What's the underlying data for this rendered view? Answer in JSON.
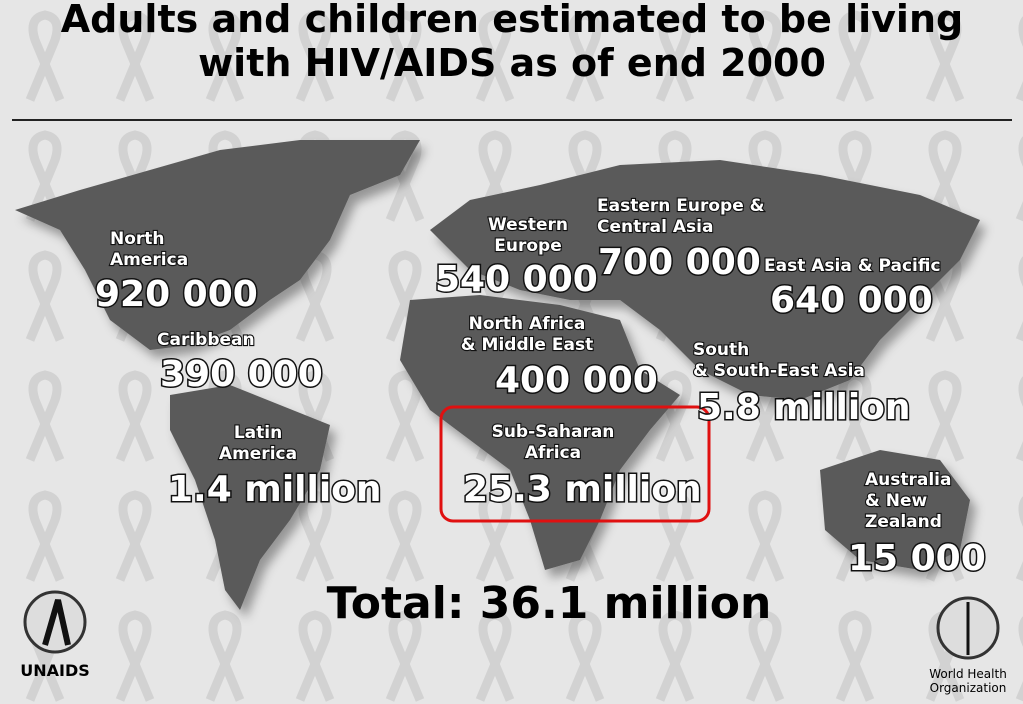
{
  "header": {
    "title": [
      "Adults and children estimated to be living",
      "with HIV/AIDS as of end 2000"
    ]
  },
  "regions": [
    {
      "name": [
        "North",
        "America"
      ],
      "value": "920 000"
    },
    {
      "name": [
        "Caribbean"
      ],
      "value": "390 000"
    },
    {
      "name": [
        "Latin",
        "America"
      ],
      "value": "1.4 million"
    },
    {
      "name": [
        "Western",
        "Europe"
      ],
      "value": "540 000"
    },
    {
      "name": [
        "Eastern Europe &",
        "Central Asia"
      ],
      "value": "700 000"
    },
    {
      "name": [
        "East Asia & Pacific"
      ],
      "value": "640 000"
    },
    {
      "name": [
        "North Africa",
        "& Middle East"
      ],
      "value": "400 000"
    },
    {
      "name": [
        "South",
        "& South-East Asia"
      ],
      "value": "5.8 million"
    },
    {
      "name": [
        "Sub-Saharan",
        "Africa"
      ],
      "value": "25.3 million"
    },
    {
      "name": [
        "Australia",
        "& New",
        "Zealand"
      ],
      "value": "15 000"
    }
  ],
  "total": "Total: 36.1 million",
  "logos": {
    "left": "UNAIDS",
    "right": [
      "World Health",
      "Organization"
    ]
  }
}
